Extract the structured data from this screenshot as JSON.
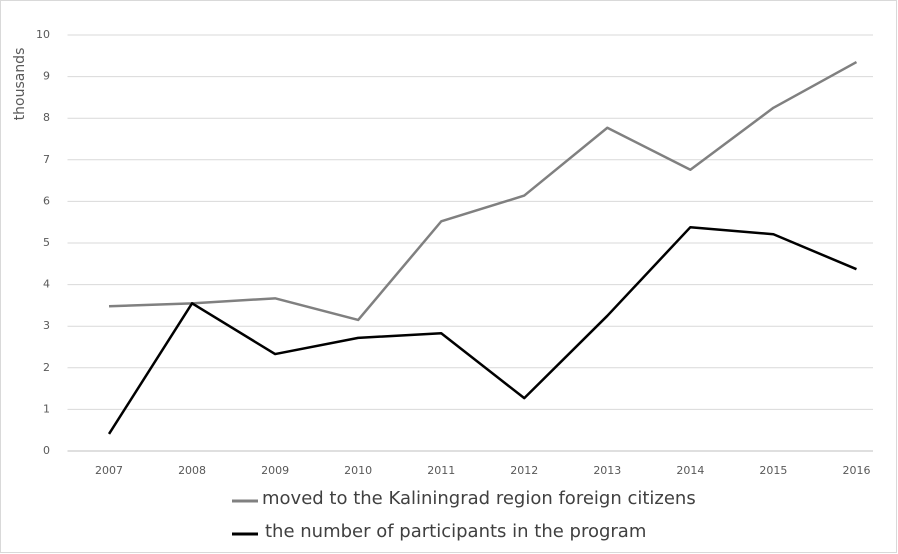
{
  "chart_data": {
    "type": "line",
    "y_label": "thousands",
    "categories": [
      "2007",
      "2008",
      "2009",
      "2010",
      "2011",
      "2012",
      "2013",
      "2014",
      "2015",
      "2016"
    ],
    "series": [
      {
        "name": "moved to the Kaliningrad region foreign citizens",
        "color": "#808080",
        "values": [
          3.48,
          3.55,
          3.67,
          3.15,
          5.52,
          6.14,
          7.77,
          6.76,
          8.25,
          9.35
        ]
      },
      {
        "name": "the number of participants in the program",
        "color": "#000000",
        "values": [
          0.41,
          3.55,
          2.33,
          2.72,
          2.83,
          1.27,
          3.25,
          5.38,
          5.21,
          4.37
        ]
      }
    ],
    "ylim": [
      0,
      10
    ],
    "yticks": [
      0,
      1,
      2,
      3,
      4,
      5,
      6,
      7,
      8,
      9,
      10
    ],
    "grid": true
  }
}
